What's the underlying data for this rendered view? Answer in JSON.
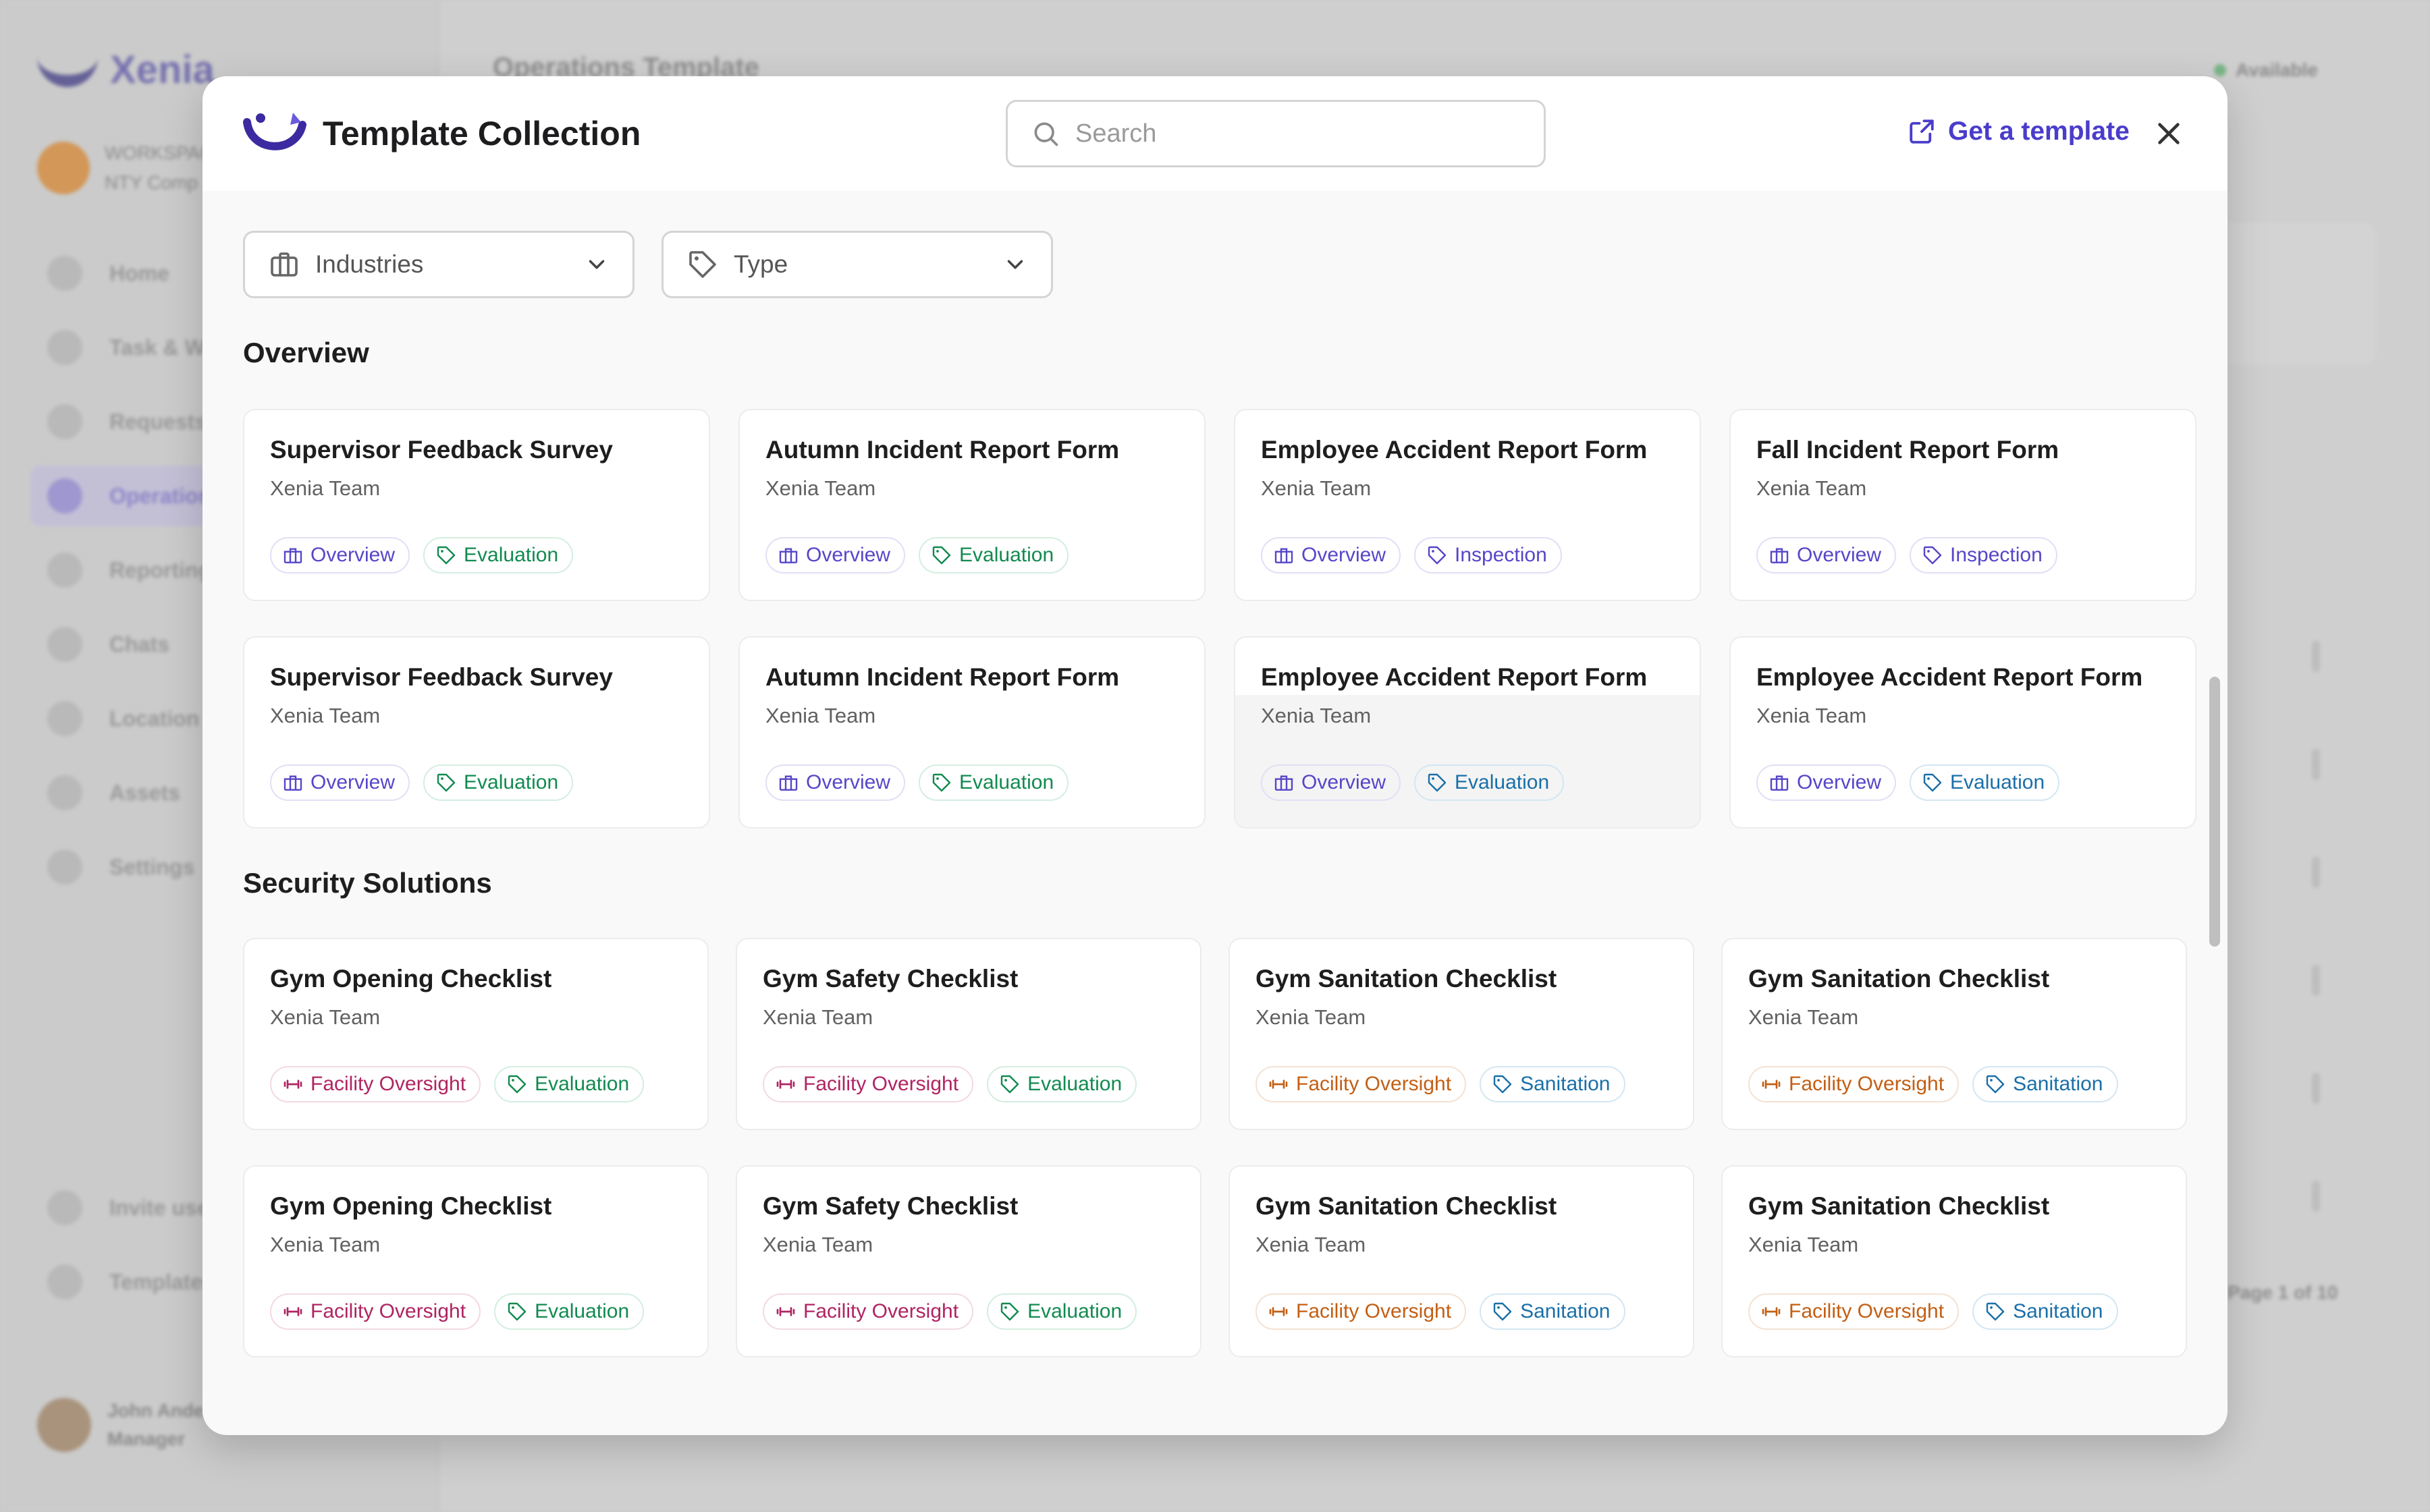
{
  "background": {
    "logo_text": "Xenia",
    "org_name": "WORKSPACE",
    "org_sub": "NTY Comp",
    "nav_items": [
      "Home",
      "Task & Wo",
      "Requests",
      "Operations",
      "Reporting",
      "Chats",
      "Location",
      "Assets",
      "Settings"
    ],
    "bottom_items": [
      "Invite use",
      "Templates"
    ],
    "user_name": "John Ande",
    "user_role": "Manager",
    "header_title": "Operations Template",
    "status": "Available",
    "pagination": "Page 1 of 10"
  },
  "modal": {
    "title": "Template Collection",
    "search_placeholder": "Search",
    "get_template_label": "Get a template",
    "filters": {
      "industries": "Industries",
      "type": "Type"
    },
    "sections": [
      {
        "title": "Overview",
        "cards": [
          {
            "title": "Supervisor Feedback Survey",
            "author": "Xenia Team",
            "industry": "Overview",
            "type": "Evaluation",
            "type_color": "green"
          },
          {
            "title": "Autumn Incident Report Form",
            "author": "Xenia Team",
            "industry": "Overview",
            "type": "Evaluation",
            "type_color": "green"
          },
          {
            "title": "Employee Accident Report Form",
            "author": "Xenia Team",
            "industry": "Overview",
            "type": "Inspection",
            "type_color": "purple"
          },
          {
            "title": "Fall Incident Report Form",
            "author": "Xenia Team",
            "industry": "Overview",
            "type": "Inspection",
            "type_color": "purple"
          },
          {
            "title": "Supervisor Feedback Survey",
            "author": "Xenia Team",
            "industry": "Overview",
            "type": "Evaluation",
            "type_color": "green"
          },
          {
            "title": "Autumn Incident Report Form",
            "author": "Xenia Team",
            "industry": "Overview",
            "type": "Evaluation",
            "type_color": "green"
          },
          {
            "title": "Employee Accident Report Form",
            "author": "Xenia Team",
            "industry": "Overview",
            "type": "Evaluation",
            "type_color": "blue"
          },
          {
            "title": "Employee Accident Report Form",
            "author": "Xenia Team",
            "industry": "Overview",
            "type": "Evaluation",
            "type_color": "blue"
          }
        ]
      },
      {
        "title": "Security Solutions",
        "cards": [
          {
            "title": "Gym Opening Checklist",
            "author": "Xenia Team",
            "industry": "Facility Oversight",
            "industry_color": "magenta",
            "type": "Evaluation",
            "type_color": "green"
          },
          {
            "title": "Gym Safety Checklist",
            "author": "Xenia Team",
            "industry": "Facility Oversight",
            "industry_color": "magenta",
            "type": "Evaluation",
            "type_color": "green"
          },
          {
            "title": "Gym Sanitation Checklist",
            "author": "Xenia Team",
            "industry": "Facility Oversight",
            "industry_color": "orange",
            "type": "Sanitation",
            "type_color": "blue"
          },
          {
            "title": "Gym Sanitation Checklist",
            "author": "Xenia Team",
            "industry": "Facility Oversight",
            "industry_color": "orange",
            "type": "Sanitation",
            "type_color": "blue"
          },
          {
            "title": "Gym Opening Checklist",
            "author": "Xenia Team",
            "industry": "Facility Oversight",
            "industry_color": "magenta",
            "type": "Evaluation",
            "type_color": "green"
          },
          {
            "title": "Gym Safety Checklist",
            "author": "Xenia Team",
            "industry": "Facility Oversight",
            "industry_color": "magenta",
            "type": "Evaluation",
            "type_color": "green"
          },
          {
            "title": "Gym Sanitation Checklist",
            "author": "Xenia Team",
            "industry": "Facility Oversight",
            "industry_color": "orange",
            "type": "Sanitation",
            "type_color": "blue"
          },
          {
            "title": "Gym Sanitation Checklist",
            "author": "Xenia Team",
            "industry": "Facility Oversight",
            "industry_color": "orange",
            "type": "Sanitation",
            "type_color": "blue"
          }
        ]
      }
    ]
  },
  "colors": {
    "accent": "#4a3ccb",
    "purple": "#5646c8",
    "green": "#128a50",
    "blue": "#1a6fa8",
    "magenta": "#b02462",
    "orange": "#c35f14"
  },
  "icons": {
    "brand": "xenia-smile-icon",
    "search": "search-icon",
    "get_template": "external-link-icon",
    "close": "close-icon",
    "industries": "briefcase-icon",
    "type": "tag-icon",
    "chevron": "chevron-down-icon",
    "overview_tag": "briefcase-icon",
    "facility_tag": "dumbbell-icon"
  }
}
